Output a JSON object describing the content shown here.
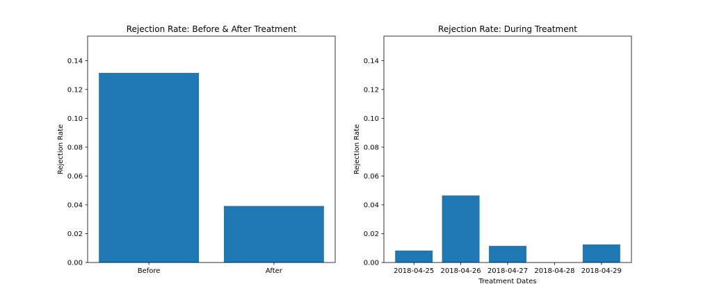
{
  "chart_data": [
    {
      "type": "bar",
      "title": "Rejection Rate: Before & After Treatment",
      "xlabel": "",
      "ylabel": "Rejection Rate",
      "categories": [
        "Before",
        "After"
      ],
      "values": [
        0.1315,
        0.0392
      ],
      "ylim": [
        0,
        0.157
      ],
      "yticks": [
        0.0,
        0.02,
        0.04,
        0.06,
        0.08,
        0.1,
        0.12,
        0.14
      ],
      "ytick_labels": [
        "0.00",
        "0.02",
        "0.04",
        "0.06",
        "0.08",
        "0.10",
        "0.12",
        "0.14"
      ],
      "bar_color": "#1f77b4",
      "grid": false
    },
    {
      "type": "bar",
      "title": "Rejection Rate: During Treatment",
      "xlabel": "Treatment Dates",
      "ylabel": "Rejection Rate",
      "categories": [
        "2018-04-25",
        "2018-04-26",
        "2018-04-27",
        "2018-04-28",
        "2018-04-29"
      ],
      "values": [
        0.0083,
        0.0465,
        0.0115,
        0.0,
        0.0125
      ],
      "ylim": [
        0,
        0.157
      ],
      "yticks": [
        0.0,
        0.02,
        0.04,
        0.06,
        0.08,
        0.1,
        0.12,
        0.14
      ],
      "ytick_labels": [
        "0.00",
        "0.02",
        "0.04",
        "0.06",
        "0.08",
        "0.10",
        "0.12",
        "0.14"
      ],
      "bar_color": "#1f77b4",
      "grid": false
    }
  ]
}
